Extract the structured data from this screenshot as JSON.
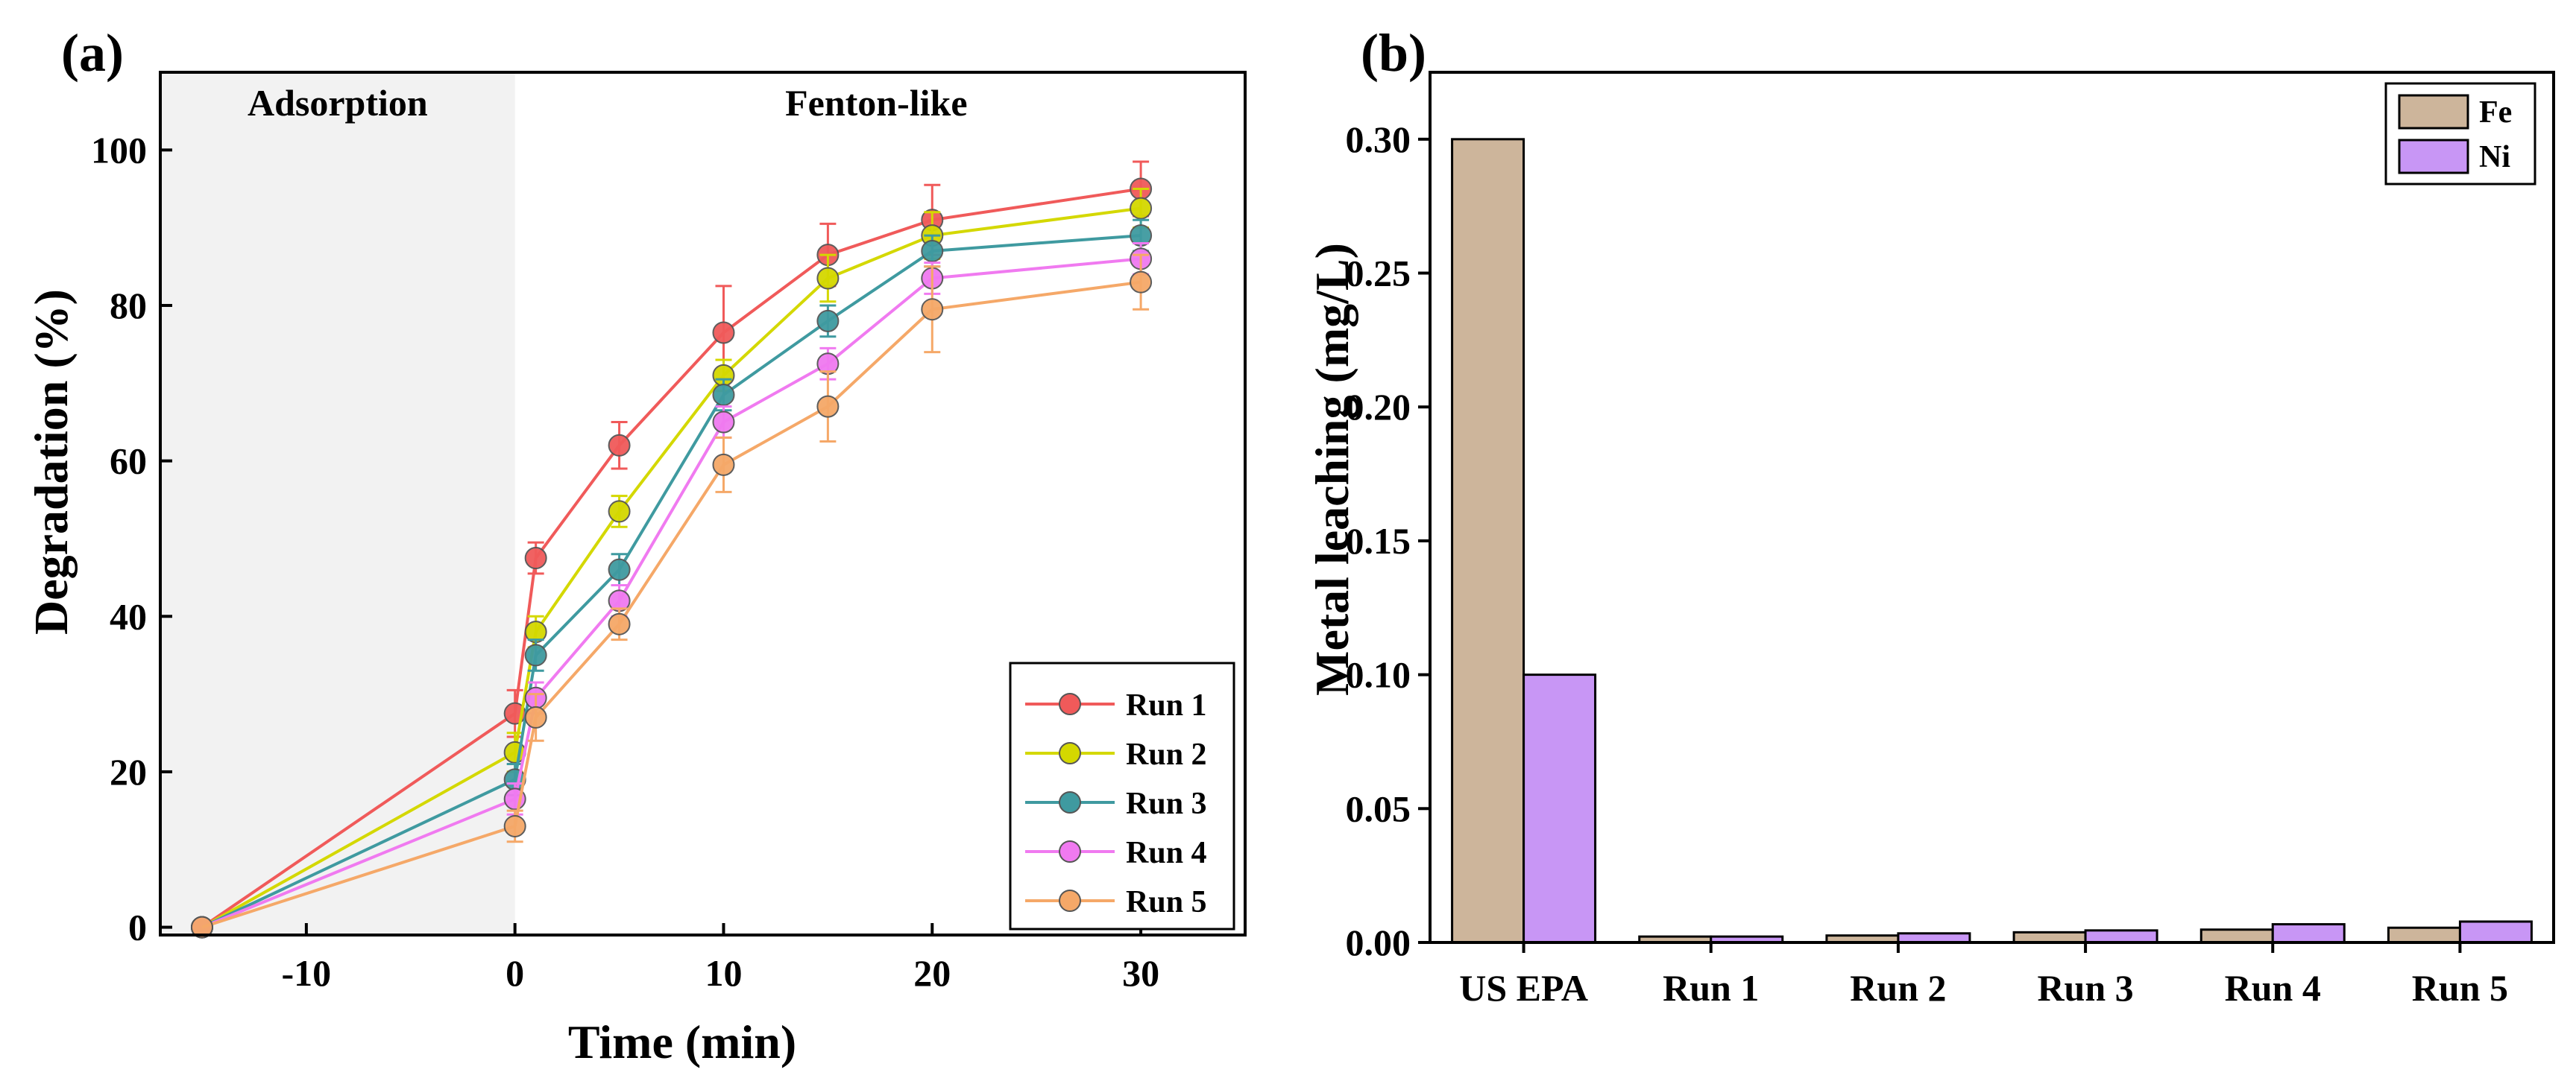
{
  "chart_data": [
    {
      "panel": "(a)",
      "type": "line",
      "xlabel": "Time (min)",
      "ylabel": "Degradation (%)",
      "xlim": [
        -17,
        35
      ],
      "ylim": [
        -1,
        110
      ],
      "x_ticks": [
        -10,
        0,
        10,
        20,
        30
      ],
      "y_ticks": [
        0,
        20,
        40,
        60,
        80,
        100
      ],
      "regions": [
        {
          "label": "Adsorption",
          "from": -17,
          "to": 0,
          "fill": "#f2f2f2"
        },
        {
          "label": "Fenton-like",
          "from": 0,
          "to": 35,
          "fill": "#ffffff"
        }
      ],
      "x": [
        -15,
        0,
        1,
        5,
        10,
        15,
        20,
        30
      ],
      "series": [
        {
          "name": "Run 1",
          "color": "#f05a5a",
          "values": [
            0,
            27.5,
            47.5,
            62.0,
            76.5,
            86.5,
            91.0,
            95.0
          ],
          "errors": [
            0,
            3.0,
            2.0,
            3.0,
            6.0,
            4.0,
            4.5,
            3.5
          ]
        },
        {
          "name": "Run 2",
          "color": "#d4d800",
          "values": [
            0,
            22.5,
            38.0,
            53.5,
            71.0,
            83.5,
            89.0,
            92.5
          ],
          "errors": [
            0,
            2.5,
            2.0,
            2.0,
            2.0,
            3.0,
            3.0,
            2.5
          ]
        },
        {
          "name": "Run 3",
          "color": "#3f9aa0",
          "values": [
            0,
            19.0,
            35.0,
            46.0,
            68.5,
            78.0,
            87.0,
            89.0
          ],
          "errors": [
            0,
            2.0,
            2.0,
            2.0,
            2.0,
            2.0,
            2.0,
            2.0
          ]
        },
        {
          "name": "Run 4",
          "color": "#f07af0",
          "values": [
            0,
            16.5,
            29.5,
            42.0,
            65.0,
            72.5,
            83.5,
            86.0
          ],
          "errors": [
            0,
            2.0,
            2.0,
            2.0,
            2.0,
            2.0,
            2.0,
            2.0
          ]
        },
        {
          "name": "Run 5",
          "color": "#f5a868",
          "values": [
            0,
            13.0,
            27.0,
            39.0,
            59.5,
            67.0,
            79.5,
            83.0
          ],
          "errors": [
            0,
            2.0,
            3.0,
            2.0,
            3.5,
            4.5,
            5.5,
            3.5
          ]
        }
      ],
      "legend": "bottom-right"
    },
    {
      "panel": "(b)",
      "type": "bar",
      "xlabel": "",
      "ylabel": "Metal leaching (mg/L)",
      "ylim": [
        0,
        0.325
      ],
      "y_ticks": [
        "0.00",
        "0.05",
        "0.10",
        "0.15",
        "0.20",
        "0.25",
        "0.30"
      ],
      "categories": [
        "US EPA",
        "Run 1",
        "Run 2",
        "Run 3",
        "Run 4",
        "Run 5"
      ],
      "series": [
        {
          "name": "Fe",
          "color": "#cdb59b",
          "values": [
            0.3,
            0.0022,
            0.0026,
            0.0038,
            0.0048,
            0.0055
          ]
        },
        {
          "name": "Ni",
          "color": "#c896f5",
          "values": [
            0.1,
            0.0022,
            0.0034,
            0.0045,
            0.0068,
            0.0078
          ]
        }
      ],
      "legend": "top-right"
    }
  ]
}
